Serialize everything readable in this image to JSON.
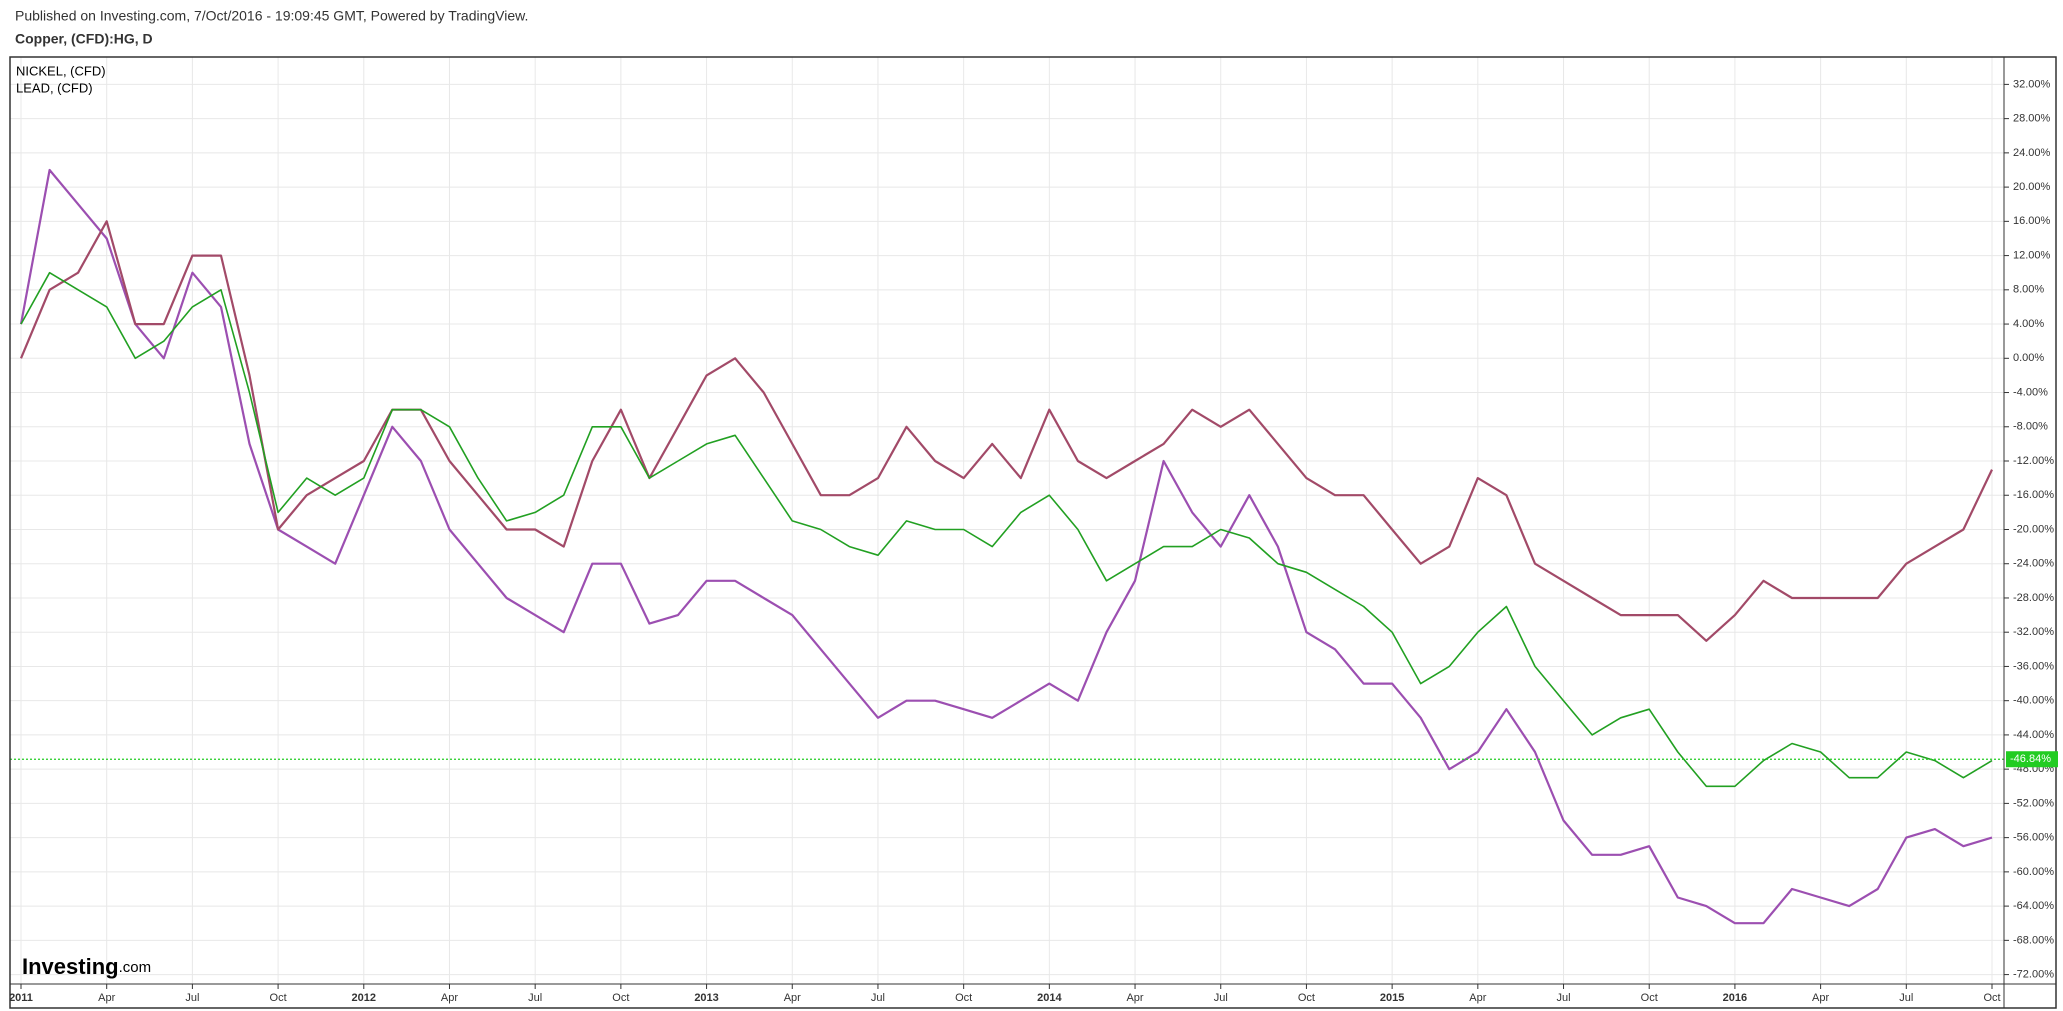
{
  "chart_data": {
    "type": "line",
    "source": "Published on Investing.com, 7/Oct/2016 - 19:09:45 GMT, Powered by TradingView.",
    "title": "Copper, (CFD):HG, D",
    "logo": {
      "name": "Investing",
      "suffix": ".com"
    },
    "categories": [
      "2011",
      null,
      null,
      "Apr",
      null,
      null,
      "Jul",
      null,
      null,
      "Oct",
      null,
      null,
      "2012",
      null,
      null,
      "Apr",
      null,
      null,
      "Jul",
      null,
      null,
      "Oct",
      null,
      null,
      "2013",
      null,
      null,
      "Apr",
      null,
      null,
      "Jul",
      null,
      null,
      "Oct",
      null,
      null,
      "2014",
      null,
      null,
      "Apr",
      null,
      null,
      "Jul",
      null,
      null,
      "Oct",
      null,
      null,
      "2015",
      null,
      null,
      "Apr",
      null,
      null,
      "Jul",
      null,
      null,
      "Oct",
      null,
      null,
      "2016",
      null,
      null,
      "Apr",
      null,
      null,
      "Jul",
      null,
      null,
      "Oct"
    ],
    "values": [
      4,
      10,
      8,
      6,
      0,
      2,
      6,
      8,
      -4,
      -18,
      -14,
      -16,
      -14,
      -6,
      -6,
      -8,
      -14,
      -19,
      -18,
      -16,
      -8,
      -8,
      -14,
      -12,
      -10,
      -9,
      -14,
      -19,
      -20,
      -22,
      -23,
      -19,
      -20,
      -20,
      -22,
      -18,
      -16,
      -20,
      -26,
      -24,
      -22,
      -22,
      -20,
      -21,
      -24,
      -25,
      -27,
      -29,
      -32,
      -38,
      -36,
      -32,
      -29,
      -36,
      -40,
      -44,
      -42,
      -41,
      -46,
      -50,
      -50,
      -47,
      -45,
      -46,
      -49,
      -49,
      -46,
      -47,
      -49,
      -47
    ],
    "color": "#22a022",
    "series": [
      {
        "name": "NICKEL,  (CFD)",
        "color": "#9c4fb1",
        "values": [
          4,
          22,
          18,
          14,
          4,
          0,
          10,
          6,
          -10,
          -20,
          -22,
          -24,
          -16,
          -8,
          -12,
          -20,
          -24,
          -28,
          -30,
          -32,
          -24,
          -24,
          -31,
          -30,
          -26,
          -26,
          -28,
          -30,
          -34,
          -38,
          -42,
          -40,
          -40,
          -41,
          -42,
          -40,
          -38,
          -40,
          -32,
          -26,
          -12,
          -18,
          -22,
          -16,
          -22,
          -32,
          -34,
          -38,
          -38,
          -42,
          -48,
          -46,
          -41,
          -46,
          -54,
          -58,
          -58,
          -57,
          -63,
          -64,
          -66,
          -66,
          -62,
          -63,
          -64,
          -62,
          -56,
          -55,
          -57,
          -56
        ]
      },
      {
        "name": "LEAD,  (CFD)",
        "color": "#a24a68",
        "values": [
          0,
          8,
          10,
          16,
          4,
          4,
          12,
          12,
          -2,
          -20,
          -16,
          -14,
          -12,
          -6,
          -6,
          -12,
          -16,
          -20,
          -20,
          -22,
          -12,
          -6,
          -14,
          -8,
          -2,
          0,
          -4,
          -10,
          -16,
          -16,
          -14,
          -8,
          -12,
          -14,
          -10,
          -14,
          -6,
          -12,
          -14,
          -12,
          -10,
          -6,
          -8,
          -6,
          -10,
          -14,
          -16,
          -16,
          -20,
          -24,
          -22,
          -14,
          -16,
          -24,
          -26,
          -28,
          -30,
          -30,
          -30,
          -33,
          -30,
          -26,
          -28,
          -28,
          -28,
          -28,
          -24,
          -22,
          -20,
          -13
        ]
      }
    ],
    "price_line": {
      "value": -46.84,
      "label": "-46.84%",
      "color": "#22cc22"
    },
    "ylim": [
      -73.1,
      35.2
    ],
    "yticks": [
      {
        "value": 32,
        "label": "32.00%"
      },
      {
        "value": 28,
        "label": "28.00%"
      },
      {
        "value": 24,
        "label": "24.00%"
      },
      {
        "value": 20,
        "label": "20.00%"
      },
      {
        "value": 16,
        "label": "16.00%"
      },
      {
        "value": 12,
        "label": "12.00%"
      },
      {
        "value": 8,
        "label": "8.00%"
      },
      {
        "value": 4,
        "label": "4.00%"
      },
      {
        "value": 0,
        "label": "0.00%"
      },
      {
        "value": -4,
        "label": "-4.00%"
      },
      {
        "value": -8,
        "label": "-8.00%"
      },
      {
        "value": -12,
        "label": "-12.00%"
      },
      {
        "value": -16,
        "label": "-16.00%"
      },
      {
        "value": -20,
        "label": "-20.00%"
      },
      {
        "value": -24,
        "label": "-24.00%"
      },
      {
        "value": -28,
        "label": "-28.00%"
      },
      {
        "value": -32,
        "label": "-32.00%"
      },
      {
        "value": -36,
        "label": "-36.00%"
      },
      {
        "value": -40,
        "label": "-40.00%"
      },
      {
        "value": -44,
        "label": "-44.00%"
      },
      {
        "value": -48,
        "label": "-48.00%"
      },
      {
        "value": -52,
        "label": "-52.00%"
      },
      {
        "value": -56,
        "label": "-56.00%"
      },
      {
        "value": -60,
        "label": "-60.00%"
      },
      {
        "value": -64,
        "label": "-64.00%"
      },
      {
        "value": -68,
        "label": "-68.00%"
      },
      {
        "value": -72,
        "label": "-72.00%"
      }
    ],
    "grid": true
  }
}
